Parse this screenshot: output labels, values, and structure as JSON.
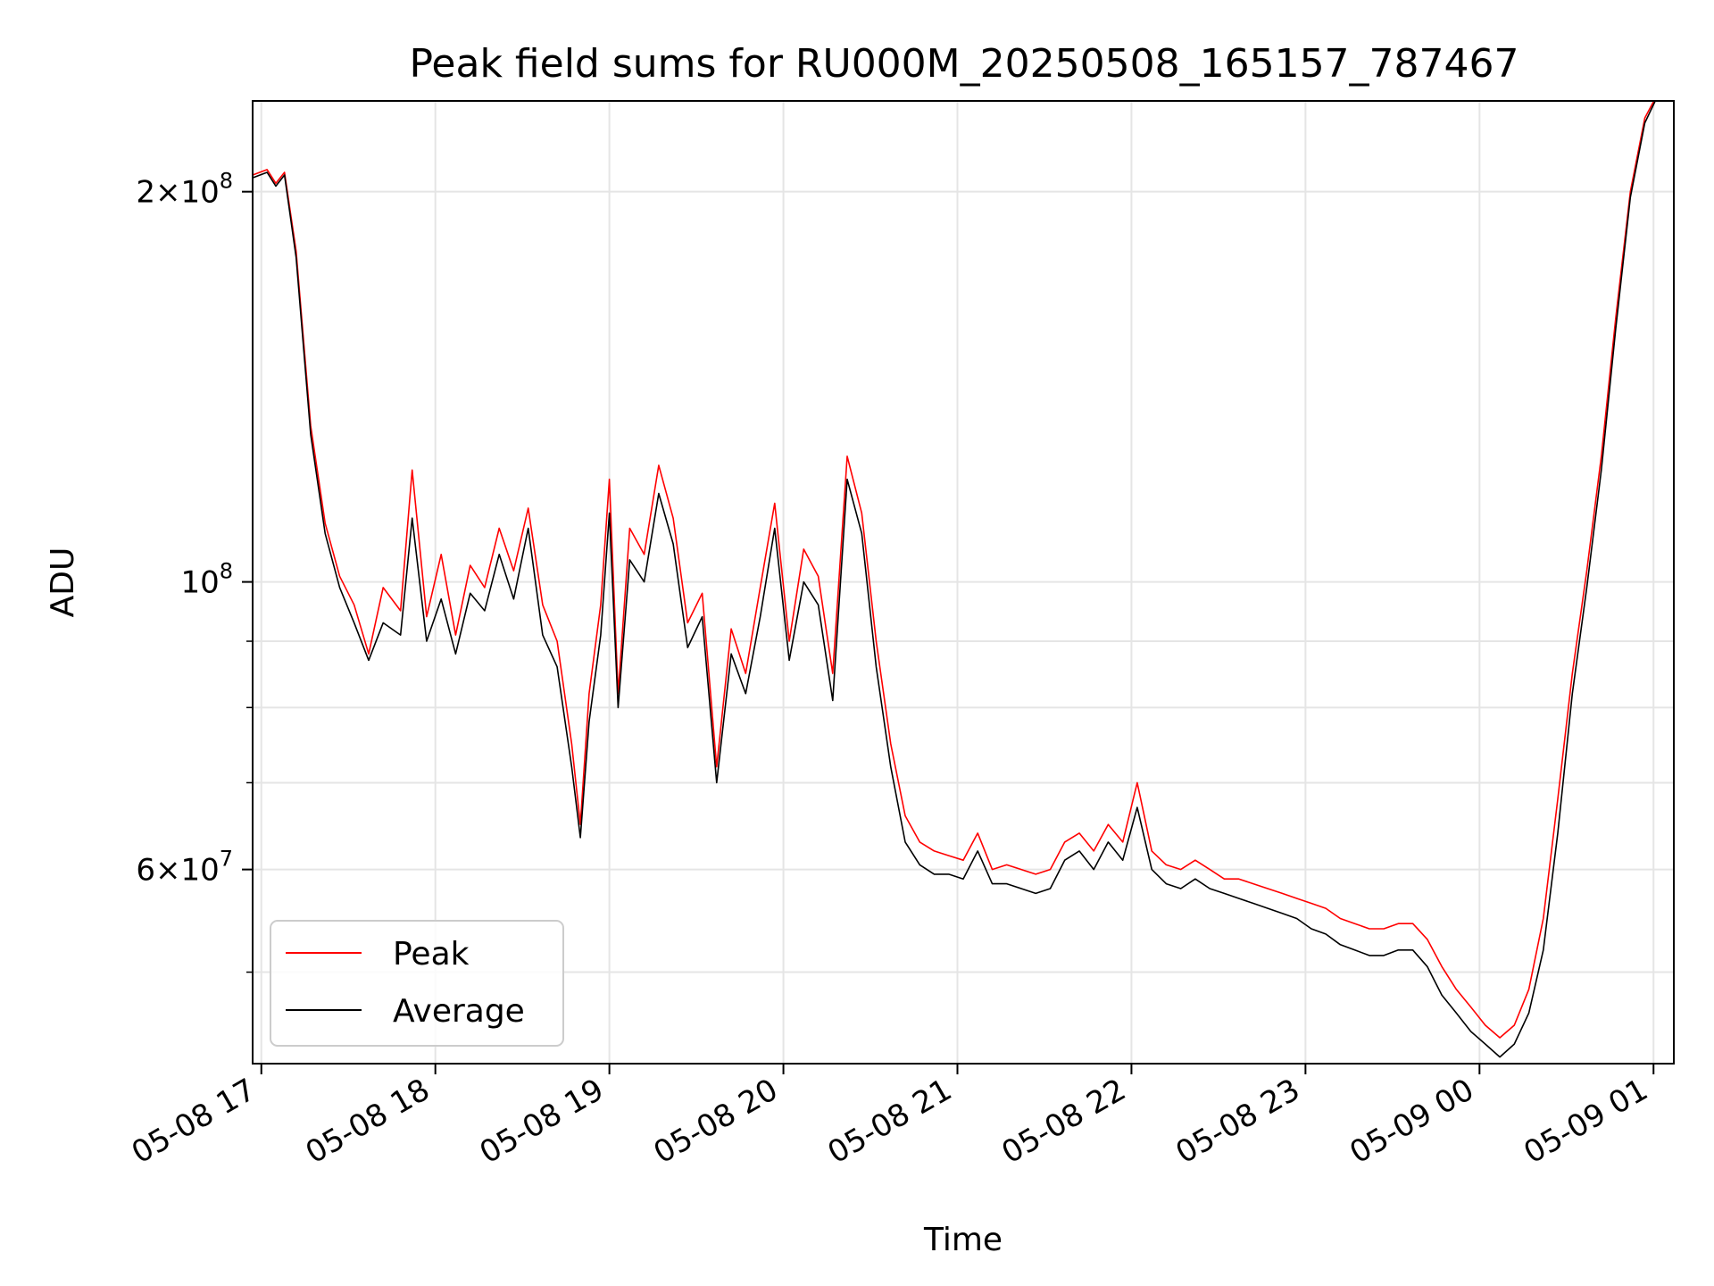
{
  "chart_data": {
    "type": "line",
    "title": "Peak field sums for RU000M_20250508_165157_787467",
    "xlabel": "Time",
    "ylabel": "ADU",
    "yscale": "log",
    "ylim": [
      42500000,
      235000000
    ],
    "xlim": [
      "05-08 16:57",
      "05-09 01:07"
    ],
    "grid": true,
    "legend_position": "bottom-left",
    "x_ticks": [
      "05-08 17",
      "05-08 18",
      "05-08 19",
      "05-08 20",
      "05-08 21",
      "05-08 22",
      "05-08 23",
      "05-09 00",
      "05-09 01"
    ],
    "y_ticks": [
      {
        "value": 200000000,
        "mantissa": "2",
        "exponent": "8"
      },
      {
        "value": 100000000,
        "mantissa": "",
        "exponent": "8"
      },
      {
        "value": 60000000,
        "mantissa": "6",
        "exponent": "7"
      }
    ],
    "series": [
      {
        "name": "Peak",
        "color": "#ff0000",
        "points": [
          [
            "05-08 16:57",
            206000000
          ],
          [
            "05-08 17:02",
            208000000
          ],
          [
            "05-08 17:05",
            203000000
          ],
          [
            "05-08 17:08",
            207000000
          ],
          [
            "05-08 17:12",
            180000000
          ],
          [
            "05-08 17:17",
            132000000
          ],
          [
            "05-08 17:22",
            111000000
          ],
          [
            "05-08 17:27",
            101000000
          ],
          [
            "05-08 17:32",
            96000000
          ],
          [
            "05-08 17:37",
            88000000
          ],
          [
            "05-08 17:42",
            99000000
          ],
          [
            "05-08 17:48",
            95000000
          ],
          [
            "05-08 17:52",
            122000000
          ],
          [
            "05-08 17:57",
            94000000
          ],
          [
            "05-08 18:02",
            105000000
          ],
          [
            "05-08 18:07",
            91000000
          ],
          [
            "05-08 18:12",
            103000000
          ],
          [
            "05-08 18:17",
            99000000
          ],
          [
            "05-08 18:22",
            110000000
          ],
          [
            "05-08 18:27",
            102000000
          ],
          [
            "05-08 18:32",
            114000000
          ],
          [
            "05-08 18:37",
            96000000
          ],
          [
            "05-08 18:42",
            90000000
          ],
          [
            "05-08 18:47",
            75000000
          ],
          [
            "05-08 18:50",
            65000000
          ],
          [
            "05-08 18:53",
            82000000
          ],
          [
            "05-08 18:57",
            96000000
          ],
          [
            "05-08 19:00",
            120000000
          ],
          [
            "05-08 19:03",
            82000000
          ],
          [
            "05-08 19:07",
            110000000
          ],
          [
            "05-08 19:12",
            105000000
          ],
          [
            "05-08 19:17",
            123000000
          ],
          [
            "05-08 19:22",
            112000000
          ],
          [
            "05-08 19:27",
            93000000
          ],
          [
            "05-08 19:32",
            98000000
          ],
          [
            "05-08 19:37",
            72000000
          ],
          [
            "05-08 19:42",
            92000000
          ],
          [
            "05-08 19:47",
            85000000
          ],
          [
            "05-08 19:52",
            99000000
          ],
          [
            "05-08 19:57",
            115000000
          ],
          [
            "05-08 20:02",
            90000000
          ],
          [
            "05-08 20:07",
            106000000
          ],
          [
            "05-08 20:12",
            101000000
          ],
          [
            "05-08 20:17",
            85000000
          ],
          [
            "05-08 20:22",
            125000000
          ],
          [
            "05-08 20:27",
            113000000
          ],
          [
            "05-08 20:32",
            90000000
          ],
          [
            "05-08 20:37",
            75000000
          ],
          [
            "05-08 20:42",
            66000000
          ],
          [
            "05-08 20:47",
            63000000
          ],
          [
            "05-08 20:52",
            62000000
          ],
          [
            "05-08 20:57",
            61500000
          ],
          [
            "05-08 21:02",
            61000000
          ],
          [
            "05-08 21:07",
            64000000
          ],
          [
            "05-08 21:12",
            60000000
          ],
          [
            "05-08 21:17",
            60500000
          ],
          [
            "05-08 21:22",
            60000000
          ],
          [
            "05-08 21:27",
            59500000
          ],
          [
            "05-08 21:32",
            60000000
          ],
          [
            "05-08 21:37",
            63000000
          ],
          [
            "05-08 21:42",
            64000000
          ],
          [
            "05-08 21:47",
            62000000
          ],
          [
            "05-08 21:52",
            65000000
          ],
          [
            "05-08 21:57",
            63000000
          ],
          [
            "05-08 22:02",
            70000000
          ],
          [
            "05-08 22:07",
            62000000
          ],
          [
            "05-08 22:12",
            60500000
          ],
          [
            "05-08 22:17",
            60000000
          ],
          [
            "05-08 22:22",
            61000000
          ],
          [
            "05-08 22:27",
            60000000
          ],
          [
            "05-08 22:32",
            59000000
          ],
          [
            "05-08 22:37",
            59000000
          ],
          [
            "05-08 22:42",
            58500000
          ],
          [
            "05-08 22:47",
            58000000
          ],
          [
            "05-08 22:52",
            57500000
          ],
          [
            "05-08 22:57",
            57000000
          ],
          [
            "05-08 23:02",
            56500000
          ],
          [
            "05-08 23:07",
            56000000
          ],
          [
            "05-08 23:12",
            55000000
          ],
          [
            "05-08 23:17",
            54500000
          ],
          [
            "05-08 23:22",
            54000000
          ],
          [
            "05-08 23:27",
            54000000
          ],
          [
            "05-08 23:32",
            54500000
          ],
          [
            "05-08 23:37",
            54500000
          ],
          [
            "05-08 23:42",
            53000000
          ],
          [
            "05-08 23:47",
            50500000
          ],
          [
            "05-08 23:52",
            48500000
          ],
          [
            "05-08 23:57",
            47000000
          ],
          [
            "05-09 00:02",
            45500000
          ],
          [
            "05-09 00:07",
            44500000
          ],
          [
            "05-09 00:12",
            45500000
          ],
          [
            "05-09 00:17",
            48500000
          ],
          [
            "05-09 00:22",
            55000000
          ],
          [
            "05-09 00:27",
            68000000
          ],
          [
            "05-09 00:32",
            85000000
          ],
          [
            "05-09 00:37",
            102000000
          ],
          [
            "05-09 00:42",
            125000000
          ],
          [
            "05-09 00:47",
            160000000
          ],
          [
            "05-09 00:52",
            200000000
          ],
          [
            "05-09 00:57",
            228000000
          ],
          [
            "05-09 01:01",
            237000000
          ]
        ]
      },
      {
        "name": "Average",
        "color": "#000000",
        "points": [
          [
            "05-08 16:57",
            205000000
          ],
          [
            "05-08 17:02",
            207000000
          ],
          [
            "05-08 17:05",
            202000000
          ],
          [
            "05-08 17:08",
            206000000
          ],
          [
            "05-08 17:12",
            178000000
          ],
          [
            "05-08 17:17",
            130000000
          ],
          [
            "05-08 17:22",
            109000000
          ],
          [
            "05-08 17:27",
            99000000
          ],
          [
            "05-08 17:32",
            93000000
          ],
          [
            "05-08 17:37",
            87000000
          ],
          [
            "05-08 17:42",
            93000000
          ],
          [
            "05-08 17:48",
            91000000
          ],
          [
            "05-08 17:52",
            112000000
          ],
          [
            "05-08 17:57",
            90000000
          ],
          [
            "05-08 18:02",
            97000000
          ],
          [
            "05-08 18:07",
            88000000
          ],
          [
            "05-08 18:12",
            98000000
          ],
          [
            "05-08 18:17",
            95000000
          ],
          [
            "05-08 18:22",
            105000000
          ],
          [
            "05-08 18:27",
            97000000
          ],
          [
            "05-08 18:32",
            110000000
          ],
          [
            "05-08 18:37",
            91000000
          ],
          [
            "05-08 18:42",
            86000000
          ],
          [
            "05-08 18:47",
            72000000
          ],
          [
            "05-08 18:50",
            63500000
          ],
          [
            "05-08 18:53",
            78000000
          ],
          [
            "05-08 18:57",
            91000000
          ],
          [
            "05-08 19:00",
            113000000
          ],
          [
            "05-08 19:03",
            80000000
          ],
          [
            "05-08 19:07",
            104000000
          ],
          [
            "05-08 19:12",
            100000000
          ],
          [
            "05-08 19:17",
            117000000
          ],
          [
            "05-08 19:22",
            107000000
          ],
          [
            "05-08 19:27",
            89000000
          ],
          [
            "05-08 19:32",
            94000000
          ],
          [
            "05-08 19:37",
            70000000
          ],
          [
            "05-08 19:42",
            88000000
          ],
          [
            "05-08 19:47",
            82000000
          ],
          [
            "05-08 19:52",
            94000000
          ],
          [
            "05-08 19:57",
            110000000
          ],
          [
            "05-08 20:02",
            87000000
          ],
          [
            "05-08 20:07",
            100000000
          ],
          [
            "05-08 20:12",
            96000000
          ],
          [
            "05-08 20:17",
            81000000
          ],
          [
            "05-08 20:22",
            120000000
          ],
          [
            "05-08 20:27",
            109000000
          ],
          [
            "05-08 20:32",
            86000000
          ],
          [
            "05-08 20:37",
            72000000
          ],
          [
            "05-08 20:42",
            63000000
          ],
          [
            "05-08 20:47",
            60500000
          ],
          [
            "05-08 20:52",
            59500000
          ],
          [
            "05-08 20:57",
            59500000
          ],
          [
            "05-08 21:02",
            59000000
          ],
          [
            "05-08 21:07",
            62000000
          ],
          [
            "05-08 21:12",
            58500000
          ],
          [
            "05-08 21:17",
            58500000
          ],
          [
            "05-08 21:22",
            58000000
          ],
          [
            "05-08 21:27",
            57500000
          ],
          [
            "05-08 21:32",
            58000000
          ],
          [
            "05-08 21:37",
            61000000
          ],
          [
            "05-08 21:42",
            62000000
          ],
          [
            "05-08 21:47",
            60000000
          ],
          [
            "05-08 21:52",
            63000000
          ],
          [
            "05-08 21:57",
            61000000
          ],
          [
            "05-08 22:02",
            67000000
          ],
          [
            "05-08 22:07",
            60000000
          ],
          [
            "05-08 22:12",
            58500000
          ],
          [
            "05-08 22:17",
            58000000
          ],
          [
            "05-08 22:22",
            59000000
          ],
          [
            "05-08 22:27",
            58000000
          ],
          [
            "05-08 22:32",
            57500000
          ],
          [
            "05-08 22:37",
            57000000
          ],
          [
            "05-08 22:42",
            56500000
          ],
          [
            "05-08 22:47",
            56000000
          ],
          [
            "05-08 22:52",
            55500000
          ],
          [
            "05-08 22:57",
            55000000
          ],
          [
            "05-08 23:02",
            54000000
          ],
          [
            "05-08 23:07",
            53500000
          ],
          [
            "05-08 23:12",
            52500000
          ],
          [
            "05-08 23:17",
            52000000
          ],
          [
            "05-08 23:22",
            51500000
          ],
          [
            "05-08 23:27",
            51500000
          ],
          [
            "05-08 23:32",
            52000000
          ],
          [
            "05-08 23:37",
            52000000
          ],
          [
            "05-08 23:42",
            50500000
          ],
          [
            "05-08 23:47",
            48000000
          ],
          [
            "05-08 23:52",
            46500000
          ],
          [
            "05-08 23:57",
            45000000
          ],
          [
            "05-09 00:02",
            44000000
          ],
          [
            "05-09 00:07",
            43000000
          ],
          [
            "05-09 00:12",
            44000000
          ],
          [
            "05-09 00:17",
            46500000
          ],
          [
            "05-09 00:22",
            52000000
          ],
          [
            "05-09 00:27",
            64000000
          ],
          [
            "05-09 00:32",
            82000000
          ],
          [
            "05-09 00:37",
            99000000
          ],
          [
            "05-09 00:42",
            122000000
          ],
          [
            "05-09 00:47",
            157000000
          ],
          [
            "05-09 00:52",
            198000000
          ],
          [
            "05-09 00:57",
            226000000
          ],
          [
            "05-09 01:01",
            236000000
          ]
        ]
      }
    ]
  }
}
